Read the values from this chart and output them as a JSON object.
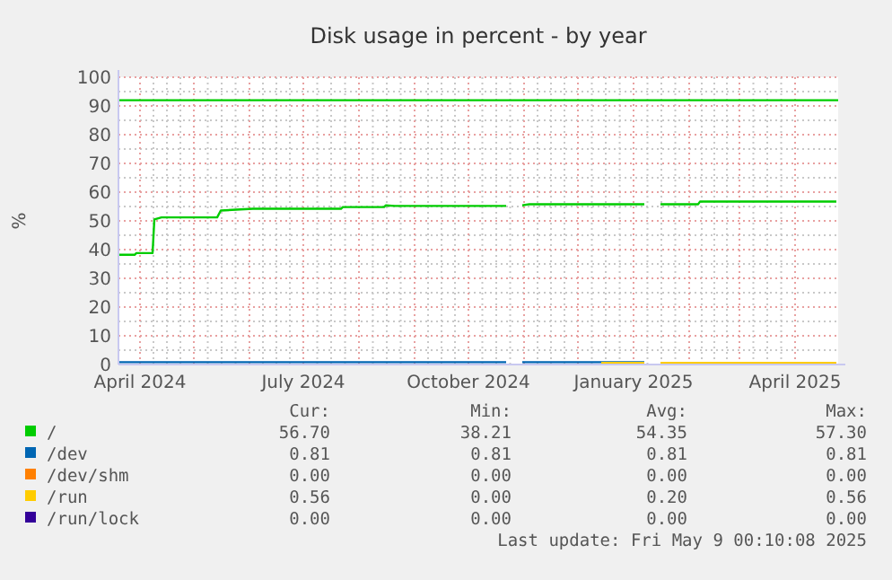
{
  "chart_data": {
    "type": "line",
    "title": "Disk usage in percent - by year",
    "ylabel": "%",
    "xlim": [
      "2024-03-20",
      "2025-04-25"
    ],
    "xticks": [
      {
        "value": "2024-04-01",
        "label": "April 2024"
      },
      {
        "value": "2024-05-01",
        "label": null
      },
      {
        "value": "2024-06-01",
        "label": null
      },
      {
        "value": "2024-07-01",
        "label": "July 2024"
      },
      {
        "value": "2024-08-01",
        "label": null
      },
      {
        "value": "2024-09-01",
        "label": null
      },
      {
        "value": "2024-10-01",
        "label": "October 2024"
      },
      {
        "value": "2024-11-01",
        "label": null
      },
      {
        "value": "2024-12-01",
        "label": null
      },
      {
        "value": "2025-01-01",
        "label": "January 2025"
      },
      {
        "value": "2025-02-01",
        "label": null
      },
      {
        "value": "2025-03-01",
        "label": null
      },
      {
        "value": "2025-04-01",
        "label": "April 2025"
      }
    ],
    "ylim": [
      0,
      100
    ],
    "yticks": [
      0,
      10,
      20,
      30,
      40,
      50,
      60,
      70,
      80,
      90,
      100
    ],
    "grid": true,
    "legend": "bottom",
    "marker": "none",
    "line_style": "solid",
    "series": [
      {
        "name": "/",
        "color": "#00cc00",
        "x": [
          "2024-03-20",
          "2024-03-29",
          "2024-03-30",
          "2024-04-08",
          "2024-04-09",
          "2024-04-13",
          "2024-05-14",
          "2024-05-16",
          "2024-06-03",
          "2024-07-22",
          "2024-07-23",
          "2024-08-15",
          "2024-08-16",
          "2024-08-21",
          "2024-10-22",
          "2024-10-23",
          "2024-10-31",
          "2024-11-04",
          "2025-01-07",
          "2025-01-08",
          "2025-01-16",
          "2025-02-06",
          "2025-02-07",
          "2025-04-24"
        ],
        "values": [
          38.2,
          38.2,
          38.8,
          38.8,
          50.5,
          51.2,
          51.2,
          53.6,
          54.2,
          54.2,
          54.8,
          54.8,
          55.4,
          55.2,
          55.2,
          null,
          55.4,
          55.8,
          55.8,
          null,
          55.8,
          55.8,
          56.7,
          56.7
        ]
      },
      {
        "name": "/dev",
        "color": "#0066b3",
        "x": [
          "2024-03-20",
          "2024-10-22",
          "2024-10-23",
          "2024-10-31",
          "2025-01-07"
        ],
        "values": [
          0.81,
          0.81,
          null,
          0.81,
          0.81
        ]
      },
      {
        "name": "/dev/shm",
        "color": "#ff8000"
      },
      {
        "name": "/run",
        "color": "#ffcc00",
        "x": [
          "2024-12-14",
          "2025-01-07",
          "2025-01-08",
          "2025-01-16",
          "2025-04-24"
        ],
        "values": [
          0.56,
          0.56,
          null,
          0.56,
          0.56
        ]
      },
      {
        "name": "/run/lock",
        "color": "#330099"
      }
    ],
    "ref_lines": [
      {
        "axis": "y",
        "value": 92,
        "color": "#00cc00"
      }
    ],
    "annotations": [
      "Cur:",
      "Min:",
      "Avg:",
      "Max:",
      "56.70",
      "38.21",
      "54.35",
      "57.30",
      "0.81",
      "0.81",
      "0.81",
      "0.81",
      "0.00",
      "0.00",
      "0.00",
      "0.00",
      "0.56",
      "0.00",
      "0.20",
      "0.56",
      "0.00",
      "0.00",
      "0.00",
      "0.00",
      "Last update: Fri May  9 00:10:08 2025"
    ]
  }
}
